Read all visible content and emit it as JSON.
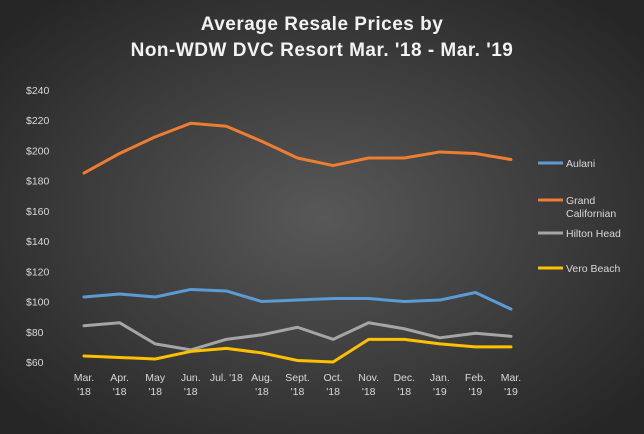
{
  "chart_data": {
    "type": "line",
    "title": "Average Resale Prices by\nNon-WDW  DVC Resort Mar. '18 - Mar. '19",
    "categories": [
      "Mar.\n'18",
      "Apr.\n'18",
      "May\n'18",
      "Jun.\n'18",
      "Jul. '18",
      "Aug.\n'18",
      "Sept.\n'18",
      "Oct.\n'18",
      "Nov.\n'18",
      "Dec.\n'18",
      "Jan.\n'19",
      "Feb.\n'19",
      "Mar.\n'19"
    ],
    "series": [
      {
        "name": "Aulani",
        "color": "#5b9bd5",
        "values": [
          103,
          105,
          103,
          108,
          107,
          100,
          101,
          102,
          102,
          100,
          101,
          106,
          95
        ]
      },
      {
        "name": "Grand Californian",
        "color": "#ed7d31",
        "values": [
          185,
          198,
          209,
          218,
          216,
          206,
          195,
          190,
          195,
          195,
          199,
          198,
          194
        ]
      },
      {
        "name": "Hilton Head",
        "color": "#a5a5a5",
        "values": [
          84,
          86,
          72,
          68,
          75,
          78,
          83,
          75,
          86,
          82,
          76,
          79,
          77
        ]
      },
      {
        "name": "Vero Beach",
        "color": "#ffc000",
        "values": [
          64,
          63,
          62,
          67,
          69,
          66,
          61,
          60,
          75,
          75,
          72,
          70,
          70
        ]
      }
    ],
    "ylim": [
      60,
      240
    ],
    "yticks": [
      {
        "value": 60,
        "label": "$60"
      },
      {
        "value": 80,
        "label": "$80"
      },
      {
        "value": 100,
        "label": "$100"
      },
      {
        "value": 120,
        "label": "$120"
      },
      {
        "value": 140,
        "label": "$140"
      },
      {
        "value": 160,
        "label": "$160"
      },
      {
        "value": 180,
        "label": "$180"
      },
      {
        "value": 200,
        "label": "$200"
      },
      {
        "value": 220,
        "label": "$220"
      },
      {
        "value": 240,
        "label": "$240"
      }
    ],
    "legend": "right"
  }
}
